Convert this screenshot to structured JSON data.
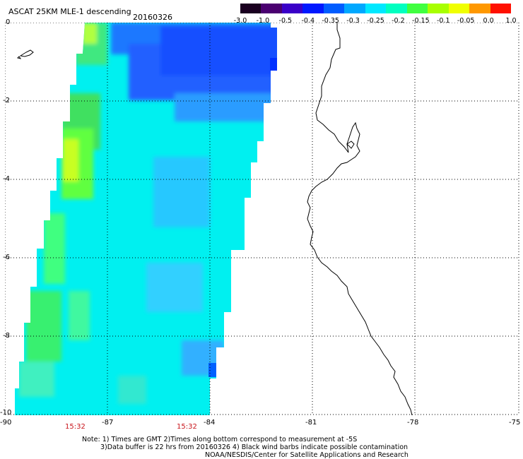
{
  "header": {
    "title": "ASCAT 25KM MLE-1 descending",
    "date": "20160326"
  },
  "colorbar": {
    "labels": [
      "-3.0",
      "-1.0",
      "-0.5",
      "-0.4",
      "-0.35",
      "-0.3",
      "-0.25",
      "-0.2",
      "-0.15",
      "-0.1",
      "-0.05",
      "0.0",
      "1.0"
    ],
    "colors": [
      "#1a0020",
      "#4a0070",
      "#3a00c8",
      "#0018ff",
      "#005cff",
      "#00a8ff",
      "#00e8ff",
      "#00ffc0",
      "#40ff40",
      "#a8ff00",
      "#f0ff00",
      "#ff9800",
      "#ff1000"
    ]
  },
  "map": {
    "lat_ticks": [
      "0",
      "-2",
      "-4",
      "-6",
      "-8",
      "-10"
    ],
    "lon_ticks": [
      "-90",
      "-87",
      "-84",
      "-81",
      "-78",
      "-75"
    ],
    "time_labels": [
      "15:32",
      "15:32"
    ]
  },
  "notes": {
    "line1": "Note: 1) Times are GMT 2)Times along bottom correspond to measurement at -5S",
    "line2": "3)Data buffer is 22 hrs from 20160326 4) Black wind barbs indicate possible contamination",
    "line3": "NOAA/NESDIS/Center for Satellite Applications and Research"
  }
}
